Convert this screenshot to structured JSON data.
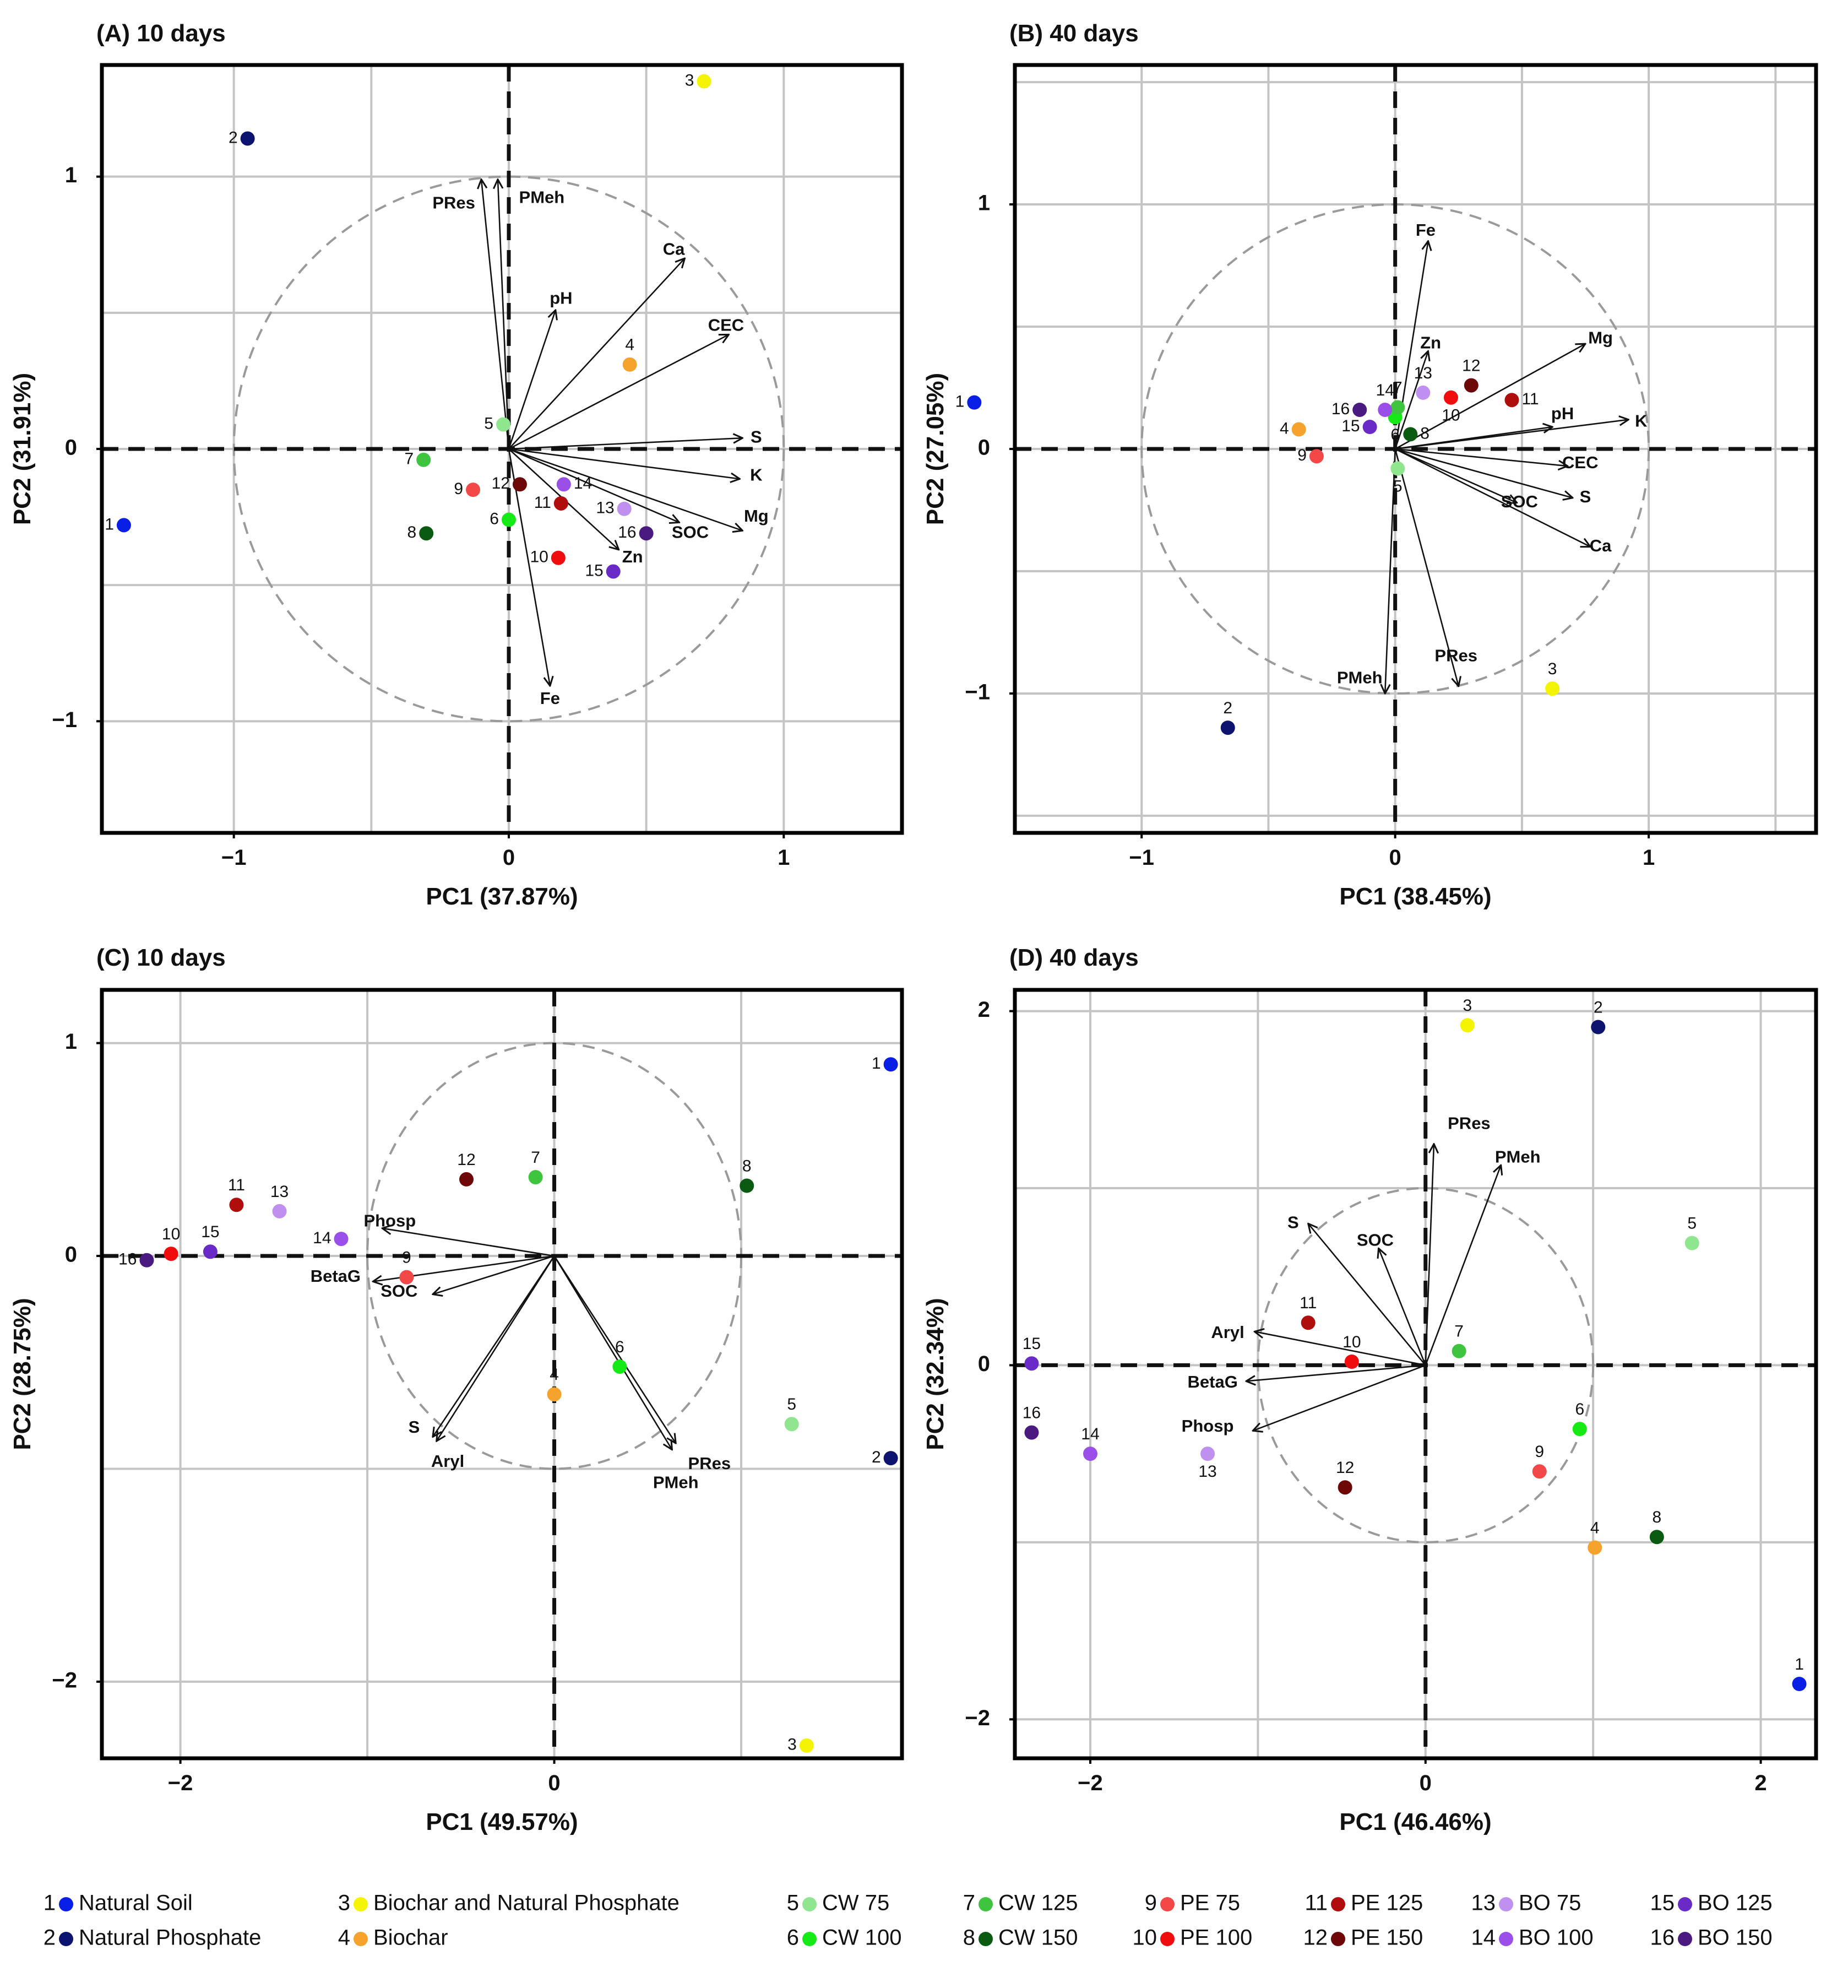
{
  "colors": {
    "1": "#0a1fe6",
    "2": "#0d1470",
    "3": "#f4f400",
    "4": "#f5a32c",
    "5": "#8fe68f",
    "6": "#16ea16",
    "7": "#3ec43e",
    "8": "#0b5a12",
    "9": "#f24848",
    "10": "#f00d0d",
    "11": "#b00d0d",
    "12": "#6e0707",
    "13": "#c090f0",
    "14": "#9a50e8",
    "15": "#6a2ac8",
    "16": "#4a1a80"
  },
  "chart_data": [
    {
      "type": "scatter",
      "panel": "A",
      "title": "(A) 10 days",
      "xlabel": "PC1 (37.87%)",
      "ylabel": "PC2 (31.91%)",
      "xlim": [
        -1.48,
        1.43
      ],
      "ylim": [
        -1.41,
        1.41
      ],
      "xticks": [
        -1,
        0,
        1
      ],
      "yticks": [
        -1,
        0,
        1
      ],
      "xtick_labels": [
        "−1",
        "0",
        "1"
      ],
      "ytick_labels": [
        "−1",
        "0",
        "1"
      ],
      "grid_x": [
        -1,
        -0.5,
        0,
        0.5,
        1
      ],
      "grid_y": [
        -1,
        -0.5,
        0,
        0.5,
        1
      ],
      "circle": true,
      "points": [
        {
          "id": "1",
          "x": -1.4,
          "y": -0.28,
          "lp": "left"
        },
        {
          "id": "2",
          "x": -0.95,
          "y": 1.14,
          "lp": "left"
        },
        {
          "id": "3",
          "x": 0.71,
          "y": 1.35,
          "lp": "left"
        },
        {
          "id": "4",
          "x": 0.44,
          "y": 0.31,
          "lp": "top"
        },
        {
          "id": "5",
          "x": -0.02,
          "y": 0.09,
          "lp": "left"
        },
        {
          "id": "6",
          "x": 0.0,
          "y": -0.26,
          "lp": "left"
        },
        {
          "id": "7",
          "x": -0.31,
          "y": -0.04,
          "lp": "left"
        },
        {
          "id": "8",
          "x": -0.3,
          "y": -0.31,
          "lp": "left"
        },
        {
          "id": "9",
          "x": -0.13,
          "y": -0.15,
          "lp": "left"
        },
        {
          "id": "10",
          "x": 0.18,
          "y": -0.4,
          "lp": "left"
        },
        {
          "id": "11",
          "x": 0.19,
          "y": -0.2,
          "lp": "left"
        },
        {
          "id": "12",
          "x": 0.04,
          "y": -0.13,
          "lp": "left"
        },
        {
          "id": "13",
          "x": 0.42,
          "y": -0.22,
          "lp": "left"
        },
        {
          "id": "14",
          "x": 0.2,
          "y": -0.13,
          "lp": "right"
        },
        {
          "id": "15",
          "x": 0.38,
          "y": -0.45,
          "lp": "left"
        },
        {
          "id": "16",
          "x": 0.5,
          "y": -0.31,
          "lp": "left"
        }
      ],
      "vectors": [
        {
          "label": "PRes",
          "x": -0.1,
          "y": 0.99,
          "lx": -0.2,
          "ly": 0.9
        },
        {
          "label": "PMeh",
          "x": -0.04,
          "y": 0.99,
          "lx": 0.12,
          "ly": 0.92
        },
        {
          "label": "Ca",
          "x": 0.64,
          "y": 0.7,
          "lx": 0.6,
          "ly": 0.73
        },
        {
          "label": "pH",
          "x": 0.17,
          "y": 0.51,
          "lx": 0.19,
          "ly": 0.55
        },
        {
          "label": "CEC",
          "x": 0.8,
          "y": 0.42,
          "lx": 0.79,
          "ly": 0.45
        },
        {
          "label": "S",
          "x": 0.85,
          "y": 0.04,
          "lx": 0.9,
          "ly": 0.04
        },
        {
          "label": "K",
          "x": 0.84,
          "y": -0.11,
          "lx": 0.9,
          "ly": -0.1
        },
        {
          "label": "Mg",
          "x": 0.85,
          "y": -0.3,
          "lx": 0.9,
          "ly": -0.25
        },
        {
          "label": "SOC",
          "x": 0.62,
          "y": -0.27,
          "lx": 0.66,
          "ly": -0.31
        },
        {
          "label": "Zn",
          "x": 0.4,
          "y": -0.37,
          "lx": 0.45,
          "ly": -0.4
        },
        {
          "label": "Fe",
          "x": 0.15,
          "y": -0.87,
          "lx": 0.15,
          "ly": -0.92
        }
      ]
    },
    {
      "type": "scatter",
      "panel": "B",
      "title": "(B) 40 days",
      "xlabel": "PC1 (38.45%)",
      "ylabel": "PC2 (27.05%)",
      "xlim": [
        -1.5,
        1.66
      ],
      "ylim": [
        -1.57,
        1.57
      ],
      "xticks": [
        -1,
        0,
        1
      ],
      "yticks": [
        -1,
        0,
        1
      ],
      "xtick_labels": [
        "−1",
        "0",
        "1"
      ],
      "ytick_labels": [
        "−1",
        "0",
        "1"
      ],
      "grid_x": [
        -1,
        -0.5,
        0,
        0.5,
        1,
        1.5
      ],
      "grid_y": [
        -1.5,
        -1,
        -0.5,
        0,
        0.5,
        1,
        1.5
      ],
      "circle": true,
      "points": [
        {
          "id": "1",
          "x": -1.66,
          "y": 0.19,
          "lp": "left"
        },
        {
          "id": "2",
          "x": -0.66,
          "y": -1.14,
          "lp": "top"
        },
        {
          "id": "3",
          "x": 0.62,
          "y": -0.98,
          "lp": "top"
        },
        {
          "id": "4",
          "x": -0.38,
          "y": 0.08,
          "lp": "left"
        },
        {
          "id": "5",
          "x": 0.01,
          "y": -0.08,
          "lp": "below"
        },
        {
          "id": "6",
          "x": 0.0,
          "y": 0.13,
          "lp": "below"
        },
        {
          "id": "7",
          "x": 0.01,
          "y": 0.17,
          "lp": "top"
        },
        {
          "id": "8",
          "x": 0.06,
          "y": 0.06,
          "lp": "right"
        },
        {
          "id": "9",
          "x": -0.31,
          "y": -0.03,
          "lp": "left"
        },
        {
          "id": "10",
          "x": 0.22,
          "y": 0.21,
          "lp": "below"
        },
        {
          "id": "11",
          "x": 0.46,
          "y": 0.2,
          "lp": "right"
        },
        {
          "id": "12",
          "x": 0.3,
          "y": 0.26,
          "lp": "top"
        },
        {
          "id": "13",
          "x": 0.11,
          "y": 0.23,
          "lp": "top"
        },
        {
          "id": "14",
          "x": -0.04,
          "y": 0.16,
          "lp": "top"
        },
        {
          "id": "15",
          "x": -0.1,
          "y": 0.09,
          "lp": "left"
        },
        {
          "id": "16",
          "x": -0.14,
          "y": 0.16,
          "lp": "left"
        }
      ],
      "vectors": [
        {
          "label": "Fe",
          "x": 0.13,
          "y": 0.85,
          "lx": 0.12,
          "ly": 0.89
        },
        {
          "label": "Zn",
          "x": 0.13,
          "y": 0.4,
          "lx": 0.14,
          "ly": 0.43
        },
        {
          "label": "Mg",
          "x": 0.75,
          "y": 0.43,
          "lx": 0.81,
          "ly": 0.45
        },
        {
          "label": "pH",
          "x": 0.62,
          "y": 0.09,
          "lx": 0.66,
          "ly": 0.14
        },
        {
          "label": "K",
          "x": 0.92,
          "y": 0.12,
          "lx": 0.97,
          "ly": 0.11
        },
        {
          "label": "CEC",
          "x": 0.68,
          "y": -0.07,
          "lx": 0.73,
          "ly": -0.06
        },
        {
          "label": "S",
          "x": 0.7,
          "y": -0.2,
          "lx": 0.75,
          "ly": -0.2
        },
        {
          "label": "SOC",
          "x": 0.48,
          "y": -0.22,
          "lx": 0.49,
          "ly": -0.22
        },
        {
          "label": "Ca",
          "x": 0.77,
          "y": -0.4,
          "lx": 0.81,
          "ly": -0.4
        },
        {
          "label": "PRes",
          "x": 0.25,
          "y": -0.97,
          "lx": 0.24,
          "ly": -0.85
        },
        {
          "label": "PMeh",
          "x": -0.04,
          "y": -1.0,
          "lx": -0.14,
          "ly": -0.94
        }
      ]
    },
    {
      "type": "scatter",
      "panel": "C",
      "title": "(C) 10 days",
      "xlabel": "PC1 (49.57%)",
      "ylabel": "PC2 (28.75%)",
      "xlim": [
        -2.42,
        1.86
      ],
      "ylim": [
        -2.36,
        1.25
      ],
      "xticks": [
        -2,
        0
      ],
      "yticks": [
        -2,
        0,
        1
      ],
      "xtick_labels": [
        "−2",
        "0"
      ],
      "ytick_labels": [
        "−2",
        "0",
        "1"
      ],
      "grid_x": [
        -2,
        -1,
        0,
        1
      ],
      "grid_y": [
        -2,
        -1,
        0,
        1
      ],
      "circle": true,
      "points": [
        {
          "id": "1",
          "x": 1.8,
          "y": 0.9,
          "lp": "left"
        },
        {
          "id": "2",
          "x": 1.8,
          "y": -0.95,
          "lp": "left"
        },
        {
          "id": "3",
          "x": 1.35,
          "y": -2.3,
          "lp": "left"
        },
        {
          "id": "4",
          "x": 0.0,
          "y": -0.65,
          "lp": "top"
        },
        {
          "id": "5",
          "x": 1.27,
          "y": -0.79,
          "lp": "top"
        },
        {
          "id": "6",
          "x": 0.35,
          "y": -0.52,
          "lp": "top"
        },
        {
          "id": "7",
          "x": -0.1,
          "y": 0.37,
          "lp": "top"
        },
        {
          "id": "8",
          "x": 1.03,
          "y": 0.33,
          "lp": "top"
        },
        {
          "id": "9",
          "x": -0.79,
          "y": -0.1,
          "lp": "top"
        },
        {
          "id": "10",
          "x": -2.05,
          "y": 0.01,
          "lp": "top"
        },
        {
          "id": "11",
          "x": -1.7,
          "y": 0.24,
          "lp": "top"
        },
        {
          "id": "12",
          "x": -0.47,
          "y": 0.36,
          "lp": "top"
        },
        {
          "id": "13",
          "x": -1.47,
          "y": 0.21,
          "lp": "top"
        },
        {
          "id": "14",
          "x": -1.14,
          "y": 0.08,
          "lp": "left"
        },
        {
          "id": "15",
          "x": -1.84,
          "y": 0.02,
          "lp": "top"
        },
        {
          "id": "16",
          "x": -2.18,
          "y": -0.02,
          "lp": "left"
        }
      ],
      "vectors": [
        {
          "label": "Phosp",
          "x": -0.92,
          "y": 0.13,
          "lx": -0.88,
          "ly": 0.16
        },
        {
          "label": "BetaG",
          "x": -0.97,
          "y": -0.12,
          "lx": -1.17,
          "ly": -0.1
        },
        {
          "label": "SOC",
          "x": -0.65,
          "y": -0.18,
          "lx": -0.83,
          "ly": -0.17
        },
        {
          "label": "S",
          "x": -0.65,
          "y": -0.85,
          "lx": -0.75,
          "ly": -0.81
        },
        {
          "label": "Aryl",
          "x": -0.63,
          "y": -0.87,
          "lx": -0.57,
          "ly": -0.97
        },
        {
          "label": "PRes",
          "x": 0.65,
          "y": -0.88,
          "lx": 0.83,
          "ly": -0.98
        },
        {
          "label": "PMeh",
          "x": 0.63,
          "y": -0.91,
          "lx": 0.65,
          "ly": -1.07
        }
      ]
    },
    {
      "type": "scatter",
      "panel": "D",
      "title": "(D) 40 days",
      "xlabel": "PC1 (46.46%)",
      "ylabel": "PC2 (32.34%)",
      "xlim": [
        -2.45,
        2.33
      ],
      "ylim": [
        -2.22,
        2.12
      ],
      "xticks": [
        -2,
        0,
        2
      ],
      "yticks": [
        -2,
        0,
        2
      ],
      "xtick_labels": [
        "−2",
        "0",
        "2"
      ],
      "ytick_labels": [
        "−2",
        "0",
        "2"
      ],
      "grid_x": [
        -2,
        -1,
        0,
        1,
        2
      ],
      "grid_y": [
        -2,
        -1,
        0,
        1,
        2
      ],
      "circle": true,
      "points": [
        {
          "id": "1",
          "x": 2.23,
          "y": -1.8,
          "lp": "top"
        },
        {
          "id": "2",
          "x": 1.03,
          "y": 1.91,
          "lp": "top"
        },
        {
          "id": "3",
          "x": 0.25,
          "y": 1.92,
          "lp": "top"
        },
        {
          "id": "4",
          "x": 1.01,
          "y": -1.03,
          "lp": "top"
        },
        {
          "id": "5",
          "x": 1.59,
          "y": 0.69,
          "lp": "top"
        },
        {
          "id": "6",
          "x": 0.92,
          "y": -0.36,
          "lp": "top"
        },
        {
          "id": "7",
          "x": 0.2,
          "y": 0.08,
          "lp": "top"
        },
        {
          "id": "8",
          "x": 1.38,
          "y": -0.97,
          "lp": "top"
        },
        {
          "id": "9",
          "x": 0.68,
          "y": -0.6,
          "lp": "top"
        },
        {
          "id": "10",
          "x": -0.44,
          "y": 0.02,
          "lp": "top"
        },
        {
          "id": "11",
          "x": -0.7,
          "y": 0.24,
          "lp": "top"
        },
        {
          "id": "12",
          "x": -0.48,
          "y": -0.69,
          "lp": "top"
        },
        {
          "id": "13",
          "x": -1.3,
          "y": -0.5,
          "lp": "below"
        },
        {
          "id": "14",
          "x": -2.0,
          "y": -0.5,
          "lp": "top"
        },
        {
          "id": "15",
          "x": -2.35,
          "y": 0.01,
          "lp": "top"
        },
        {
          "id": "16",
          "x": -2.35,
          "y": -0.38,
          "lp": "top"
        }
      ],
      "vectors": [
        {
          "label": "PRes",
          "x": 0.05,
          "y": 1.25,
          "lx": 0.26,
          "ly": 1.36
        },
        {
          "label": "PMeh",
          "x": 0.45,
          "y": 1.13,
          "lx": 0.55,
          "ly": 1.17
        },
        {
          "label": "S",
          "x": -0.7,
          "y": 0.8,
          "lx": -0.79,
          "ly": 0.8
        },
        {
          "label": "SOC",
          "x": -0.28,
          "y": 0.66,
          "lx": -0.3,
          "ly": 0.7
        },
        {
          "label": "Aryl",
          "x": -1.02,
          "y": 0.19,
          "lx": -1.18,
          "ly": 0.18
        },
        {
          "label": "BetaG",
          "x": -1.07,
          "y": -0.09,
          "lx": -1.27,
          "ly": -0.1
        },
        {
          "label": "Phosp",
          "x": -1.03,
          "y": -0.37,
          "lx": -1.3,
          "ly": -0.35
        }
      ]
    }
  ],
  "legend": [
    {
      "id": "1",
      "label": "Natural Soil"
    },
    {
      "id": "2",
      "label": "Natural Phosphate"
    },
    {
      "id": "3",
      "label": "Biochar and Natural Phosphate"
    },
    {
      "id": "4",
      "label": "Biochar"
    },
    {
      "id": "5",
      "label": "CW 75"
    },
    {
      "id": "6",
      "label": "CW 100"
    },
    {
      "id": "7",
      "label": "CW 125"
    },
    {
      "id": "8",
      "label": "CW 150"
    },
    {
      "id": "9",
      "label": "PE 75"
    },
    {
      "id": "10",
      "label": "PE 100"
    },
    {
      "id": "11",
      "label": "PE 125"
    },
    {
      "id": "12",
      "label": "PE 150"
    },
    {
      "id": "13",
      "label": "BO 75"
    },
    {
      "id": "14",
      "label": "BO 100"
    },
    {
      "id": "15",
      "label": "BO 125"
    },
    {
      "id": "16",
      "label": "BO 150"
    }
  ]
}
